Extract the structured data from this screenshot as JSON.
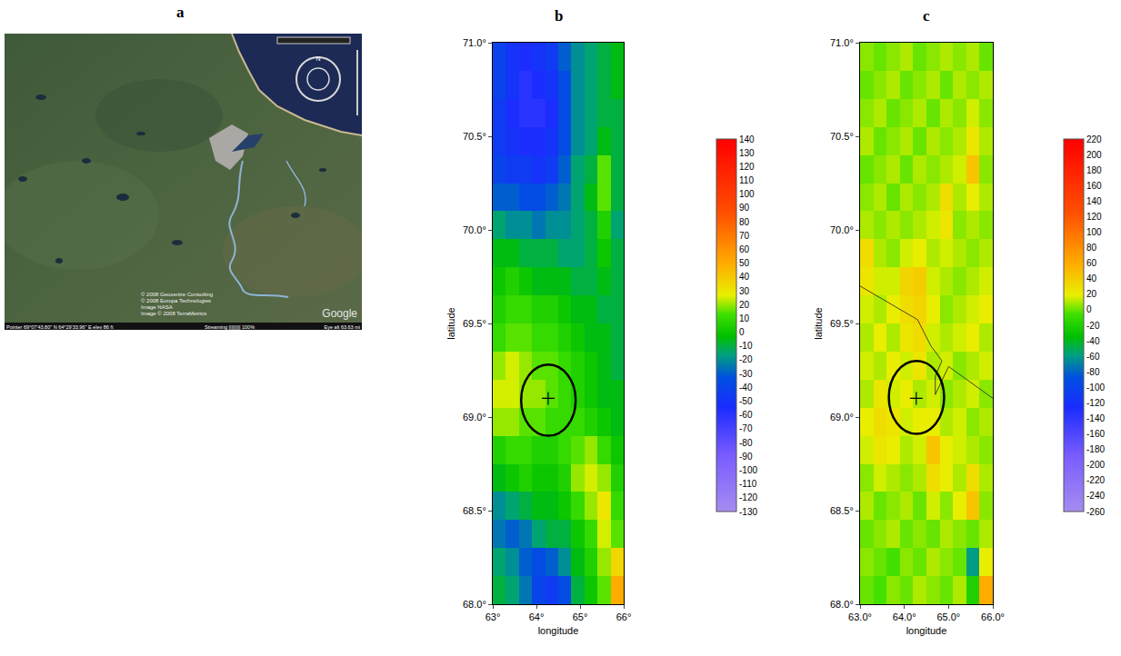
{
  "panel_a": {
    "panel_label": "a",
    "type": "image",
    "compass": "N",
    "credits": [
      "© 2008 Geocentre Consulting",
      "© 2008 Europa Technologies",
      "Image NASA",
      "Image © 2008 TerraMetrics"
    ],
    "logo": "Google",
    "status_bar": {
      "pointer": "Pointer  69°07'43.80\" N   64°29'33.96\" E   elev  86 ft",
      "streaming": "Streaming ||||||||| 100%",
      "eye_alt": "Eye alt  63.63 mi"
    }
  },
  "chart_data": [
    {
      "type": "heatmap",
      "panel_label": "b",
      "xlabel": "longitude",
      "ylabel": "latitude",
      "xlim": [
        63,
        66
      ],
      "ylim": [
        68,
        71
      ],
      "xticks": [
        {
          "value": 63,
          "label": "63°"
        },
        {
          "value": 64,
          "label": "64°"
        },
        {
          "value": 65,
          "label": "65°"
        },
        {
          "value": 66,
          "label": "66°"
        }
      ],
      "yticks": [
        {
          "value": 68,
          "label": "68.0°"
        },
        {
          "value": 68.5,
          "label": "68.5°"
        },
        {
          "value": 69,
          "label": "69.0°"
        },
        {
          "value": 69.5,
          "label": "69.5°"
        },
        {
          "value": 70,
          "label": "70.0°"
        },
        {
          "value": 70.5,
          "label": "70.5°"
        },
        {
          "value": 71,
          "label": "71.0°"
        }
      ],
      "x": [
        63.15,
        63.45,
        63.75,
        64.05,
        64.35,
        64.65,
        64.95,
        65.25,
        65.55,
        65.85
      ],
      "y": [
        68.075,
        68.225,
        68.375,
        68.525,
        68.675,
        68.825,
        68.975,
        69.125,
        69.275,
        69.425,
        69.575,
        69.725,
        69.875,
        70.025,
        70.175,
        70.325,
        70.475,
        70.625,
        70.775,
        70.925
      ],
      "z": [
        [
          -10,
          -15,
          -25,
          -40,
          -45,
          -35,
          -10,
          0,
          15,
          50
        ],
        [
          -15,
          -20,
          -30,
          -35,
          -30,
          -20,
          -5,
          5,
          20,
          35
        ],
        [
          -25,
          -30,
          -25,
          -15,
          -10,
          -10,
          0,
          10,
          25,
          15
        ],
        [
          -20,
          -15,
          -10,
          -5,
          -5,
          0,
          10,
          20,
          30,
          10
        ],
        [
          -5,
          0,
          5,
          0,
          0,
          5,
          20,
          25,
          20,
          5
        ],
        [
          5,
          10,
          10,
          5,
          5,
          10,
          15,
          20,
          10,
          0
        ],
        [
          20,
          20,
          15,
          15,
          10,
          10,
          10,
          5,
          0,
          -5
        ],
        [
          25,
          25,
          20,
          20,
          15,
          10,
          5,
          0,
          -5,
          -5
        ],
        [
          20,
          25,
          20,
          15,
          15,
          10,
          5,
          0,
          -5,
          -10
        ],
        [
          10,
          15,
          15,
          10,
          10,
          5,
          0,
          -5,
          -5,
          -10
        ],
        [
          5,
          10,
          10,
          5,
          5,
          0,
          -5,
          -5,
          -10,
          -10
        ],
        [
          0,
          5,
          0,
          -5,
          -5,
          -5,
          -10,
          -10,
          -5,
          -10
        ],
        [
          -5,
          -5,
          -10,
          -10,
          -10,
          -15,
          -15,
          -10,
          0,
          -10
        ],
        [
          -15,
          -20,
          -20,
          -25,
          -20,
          -20,
          -15,
          -10,
          5,
          -15
        ],
        [
          -30,
          -30,
          -35,
          -35,
          -30,
          -25,
          -15,
          -5,
          15,
          -10
        ],
        [
          -40,
          -45,
          -45,
          -50,
          -45,
          -30,
          -15,
          -10,
          15,
          -10
        ],
        [
          -45,
          -50,
          -55,
          -55,
          -50,
          -35,
          -20,
          -15,
          -5,
          -10
        ],
        [
          -45,
          -55,
          -60,
          -60,
          -55,
          -35,
          -20,
          -15,
          -10,
          -10
        ],
        [
          -40,
          -50,
          -60,
          -55,
          -50,
          -35,
          -20,
          -15,
          -10,
          -5
        ],
        [
          -40,
          -50,
          -55,
          -50,
          -45,
          -30,
          -20,
          -15,
          -10,
          -5
        ]
      ],
      "colorbar": {
        "range": [
          -130,
          140
        ],
        "ticks": [
          140,
          130,
          120,
          110,
          100,
          90,
          80,
          70,
          60,
          50,
          40,
          30,
          20,
          10,
          0,
          -10,
          -20,
          -30,
          -40,
          -50,
          -60,
          -70,
          -80,
          -90,
          -100,
          -110,
          -120,
          -130
        ]
      },
      "circle": {
        "x": [
          63.65,
          64.9
        ],
        "y": [
          68.9,
          69.28
        ]
      },
      "point": {
        "x": 64.27,
        "y": 69.1
      }
    },
    {
      "type": "heatmap",
      "panel_label": "c",
      "xlabel": "longitude",
      "ylabel": "latitude",
      "xlim": [
        63,
        66
      ],
      "ylim": [
        68,
        71
      ],
      "xticks": [
        {
          "value": 63,
          "label": "63.0°"
        },
        {
          "value": 64,
          "label": "64.0°"
        },
        {
          "value": 65,
          "label": "65.0°"
        },
        {
          "value": 66,
          "label": "66.0°"
        }
      ],
      "yticks": [
        {
          "value": 68,
          "label": "68.0°"
        },
        {
          "value": 68.5,
          "label": "68.5°"
        },
        {
          "value": 69,
          "label": "69.0°"
        },
        {
          "value": 69.5,
          "label": "69.5°"
        },
        {
          "value": 70,
          "label": "70.0°"
        },
        {
          "value": 70.5,
          "label": "70.5°"
        },
        {
          "value": 71,
          "label": "71.0°"
        }
      ],
      "x": [
        63.15,
        63.45,
        63.75,
        64.05,
        64.35,
        64.65,
        64.95,
        65.25,
        65.55,
        65.85
      ],
      "y": [
        68.075,
        68.225,
        68.375,
        68.525,
        68.675,
        68.825,
        68.975,
        69.125,
        69.275,
        69.425,
        69.575,
        69.725,
        69.875,
        70.025,
        70.175,
        70.325,
        70.475,
        70.625,
        70.775,
        70.925
      ],
      "z": [
        [
          0,
          -5,
          5,
          0,
          10,
          5,
          0,
          10,
          -20,
          60
        ],
        [
          5,
          0,
          -5,
          5,
          0,
          10,
          5,
          0,
          -60,
          20
        ],
        [
          0,
          5,
          10,
          0,
          5,
          0,
          10,
          5,
          0,
          10
        ],
        [
          10,
          0,
          5,
          10,
          0,
          15,
          5,
          20,
          45,
          5
        ],
        [
          5,
          15,
          10,
          5,
          10,
          30,
          20,
          10,
          30,
          10
        ],
        [
          15,
          25,
          20,
          10,
          15,
          45,
          20,
          15,
          10,
          5
        ],
        [
          20,
          30,
          25,
          15,
          20,
          20,
          10,
          15,
          5,
          10
        ],
        [
          10,
          25,
          15,
          20,
          10,
          15,
          5,
          10,
          15,
          5
        ],
        [
          15,
          10,
          20,
          15,
          25,
          10,
          15,
          5,
          10,
          15
        ],
        [
          10,
          20,
          10,
          25,
          30,
          15,
          10,
          15,
          20,
          10
        ],
        [
          15,
          10,
          20,
          30,
          35,
          20,
          5,
          10,
          15,
          20
        ],
        [
          25,
          15,
          15,
          35,
          40,
          15,
          10,
          5,
          10,
          15
        ],
        [
          30,
          10,
          5,
          15,
          20,
          10,
          15,
          10,
          5,
          10
        ],
        [
          10,
          5,
          10,
          5,
          10,
          15,
          25,
          5,
          10,
          5
        ],
        [
          5,
          10,
          0,
          10,
          5,
          10,
          30,
          10,
          20,
          10
        ],
        [
          0,
          5,
          10,
          0,
          10,
          5,
          10,
          15,
          45,
          5
        ],
        [
          10,
          0,
          5,
          10,
          0,
          10,
          5,
          10,
          25,
          10
        ],
        [
          5,
          10,
          0,
          5,
          10,
          0,
          10,
          5,
          15,
          5
        ],
        [
          0,
          5,
          10,
          0,
          5,
          10,
          0,
          10,
          5,
          10
        ],
        [
          5,
          0,
          5,
          10,
          0,
          5,
          10,
          5,
          10,
          0
        ]
      ],
      "colorbar": {
        "range": [
          -260,
          220
        ],
        "ticks": [
          220,
          200,
          180,
          160,
          140,
          120,
          100,
          80,
          60,
          40,
          20,
          0,
          -20,
          -40,
          -60,
          -80,
          -100,
          -120,
          -140,
          -160,
          -180,
          -200,
          -220,
          -240,
          -260
        ]
      },
      "circle": {
        "x": [
          63.65,
          64.9
        ],
        "y": [
          68.91,
          69.3
        ]
      },
      "point": {
        "x": 64.27,
        "y": 69.1
      },
      "boundary": {
        "x": [
          63.0,
          64.3,
          64.6,
          64.85,
          64.7,
          64.7,
          65.0,
          66.0
        ],
        "y": [
          69.7,
          69.52,
          69.38,
          69.3,
          69.22,
          69.12,
          69.27,
          69.1
        ]
      }
    }
  ]
}
